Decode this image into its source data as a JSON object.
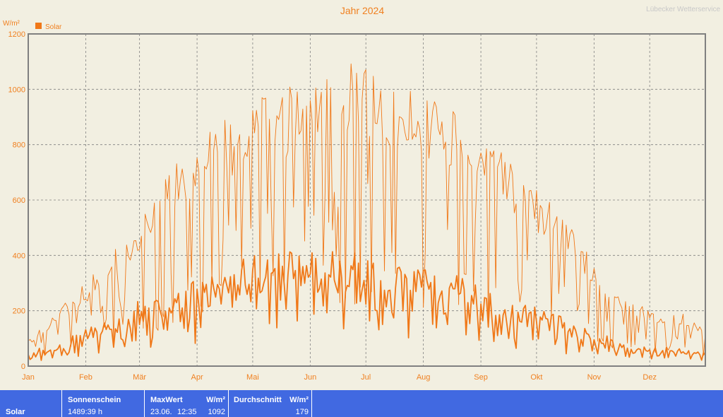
{
  "header": {
    "title": "Jahr 2024",
    "watermark": "Lübecker Wetterservice"
  },
  "colors": {
    "background": "#F2EFE1",
    "accent": "#F08020",
    "series": "#F07818",
    "frame": "#808080",
    "grid": "#808080",
    "stats_bar": "#4169E1",
    "stats_text": "#FFFFFF"
  },
  "chart_data": {
    "type": "line",
    "title": "Jahr 2024",
    "ylabel": "W/m²",
    "ylim": [
      0,
      1200
    ],
    "yticks": [
      "0",
      "200",
      "400",
      "600",
      "800",
      "1000",
      "1200"
    ],
    "xlabels": [
      "Jan",
      "Feb",
      "Mär",
      "Apr",
      "Mai",
      "Jun",
      "Jul",
      "Aug",
      "Sep",
      "Okt",
      "Nov",
      "Dez"
    ],
    "month_start_days": [
      0,
      31,
      60,
      91,
      121,
      152,
      182,
      213,
      244,
      274,
      305,
      335
    ],
    "days_in_year": 366,
    "grid": true,
    "legend": [
      {
        "label": "Solar",
        "position": "top-left"
      }
    ],
    "series": [
      {
        "name": "Solar",
        "kind": "daily-max",
        "peak": 1092,
        "envelope": [
          [
            0,
            95
          ],
          [
            15,
            195
          ],
          [
            31,
            290
          ],
          [
            46,
            400
          ],
          [
            60,
            520
          ],
          [
            75,
            680
          ],
          [
            91,
            780
          ],
          [
            106,
            860
          ],
          [
            121,
            920
          ],
          [
            136,
            960
          ],
          [
            152,
            1000
          ],
          [
            167,
            1030
          ],
          [
            182,
            1050
          ],
          [
            197,
            1000
          ],
          [
            213,
            960
          ],
          [
            228,
            900
          ],
          [
            244,
            820
          ],
          [
            259,
            720
          ],
          [
            274,
            620
          ],
          [
            289,
            520
          ],
          [
            305,
            380
          ],
          [
            320,
            260
          ],
          [
            335,
            200
          ],
          [
            350,
            190
          ],
          [
            365,
            150
          ]
        ]
      },
      {
        "name": "Solar",
        "kind": "daily-average",
        "avg": 179,
        "envelope": [
          [
            0,
            45
          ],
          [
            15,
            70
          ],
          [
            31,
            110
          ],
          [
            46,
            150
          ],
          [
            60,
            200
          ],
          [
            75,
            230
          ],
          [
            91,
            260
          ],
          [
            106,
            300
          ],
          [
            121,
            340
          ],
          [
            136,
            360
          ],
          [
            152,
            350
          ],
          [
            167,
            350
          ],
          [
            182,
            340
          ],
          [
            197,
            330
          ],
          [
            213,
            310
          ],
          [
            228,
            280
          ],
          [
            244,
            240
          ],
          [
            259,
            200
          ],
          [
            274,
            180
          ],
          [
            289,
            150
          ],
          [
            305,
            110
          ],
          [
            320,
            80
          ],
          [
            335,
            60
          ],
          [
            350,
            55
          ],
          [
            365,
            45
          ]
        ]
      }
    ]
  },
  "stats": {
    "row_label": "Solar",
    "sun_header": "Sonnenschein",
    "sun_value": "1489:39 h",
    "max_header": "MaxWert",
    "max_unit": "W/m²",
    "max_date": "23.06.",
    "max_time": "12:35",
    "max_value": "1092",
    "avg_header": "Durchschnitt",
    "avg_unit": "W/m²",
    "avg_value": "179"
  }
}
